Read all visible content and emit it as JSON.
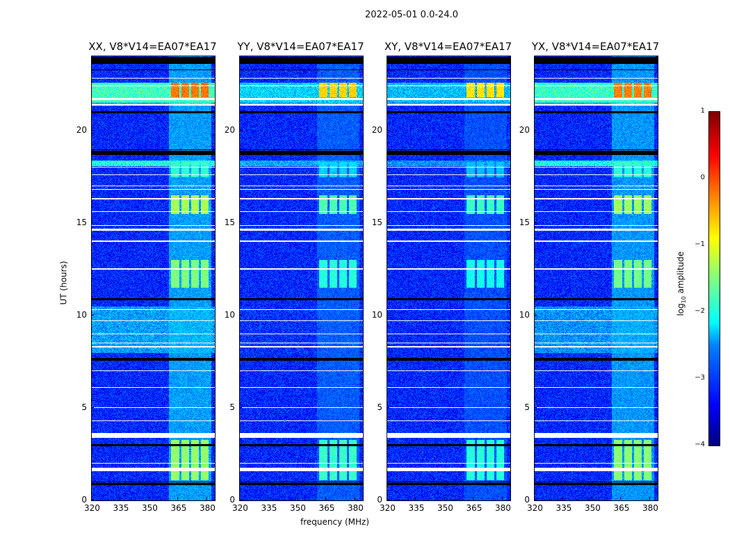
{
  "chart_data": {
    "type": "heatmap",
    "suptitle": "2022-05-01 0.0-24.0",
    "panels": [
      {
        "title": "XX, V8*V14=EA07*EA17",
        "scale": 1.0
      },
      {
        "title": "YY, V8*V14=EA07*EA17",
        "scale": 0.55
      },
      {
        "title": "XY, V8*V14=EA07*EA17",
        "scale": 0.45
      },
      {
        "title": "YX, V8*V14=EA07*EA17",
        "scale": 0.95
      }
    ],
    "xlabel": "frequency (MHz)",
    "ylabel": "UT (hours)",
    "xlim": [
      320,
      384
    ],
    "ylim": [
      0,
      24
    ],
    "xticks": [
      "320",
      "335",
      "350",
      "365",
      "380"
    ],
    "xtick_values": [
      320,
      335,
      350,
      365,
      380
    ],
    "yticks": [
      "0",
      "5",
      "10",
      "15",
      "20"
    ],
    "ytick_values": [
      0,
      5,
      10,
      15,
      20
    ],
    "colorbar": {
      "label_main": "log",
      "label_sub": "10",
      "label_rest": " amplitude",
      "ticks": [
        "1",
        "0",
        "−1",
        "−2",
        "−3",
        "−4"
      ],
      "tick_values": [
        1,
        0,
        -1,
        -2,
        -3,
        -4
      ],
      "range": [
        -4,
        1
      ],
      "colormap": "jet"
    },
    "rfi_channels_mhz": [
      [
        361,
        365.5
      ],
      [
        366.5,
        370.5
      ],
      [
        371.5,
        375.5
      ],
      [
        376.5,
        380.5
      ]
    ],
    "rfi_bursts": [
      {
        "ut": [
          1.1,
          3.3
        ],
        "level": -1.4
      },
      {
        "ut": [
          11.5,
          13.0
        ],
        "level": -1.5
      },
      {
        "ut": [
          15.5,
          16.5
        ],
        "level": -1.3
      },
      {
        "ut": [
          17.5,
          18.3
        ],
        "level": -1.9
      },
      {
        "ut": [
          21.8,
          22.6
        ],
        "level": -0.2
      }
    ],
    "broadband_bursts": [
      {
        "ut": [
          21.5,
          22.6
        ],
        "level": -1.8
      },
      {
        "ut": [
          18.1,
          18.4
        ],
        "level": -2.0
      },
      {
        "ut": [
          8.0,
          10.5
        ],
        "level": -2.6
      }
    ],
    "background_level": -3.2,
    "flagged_white_ut": [
      [
        1.6,
        1.8
      ],
      [
        2.0,
        2.05
      ],
      [
        3.4,
        3.65
      ],
      [
        4.3,
        4.35
      ],
      [
        5.0,
        5.05
      ],
      [
        6.1,
        6.15
      ],
      [
        7.0,
        7.05
      ],
      [
        8.3,
        8.35
      ],
      [
        8.5,
        8.55
      ],
      [
        9.0,
        9.05
      ],
      [
        9.7,
        9.75
      ],
      [
        10.3,
        10.35
      ],
      [
        12.5,
        12.55
      ],
      [
        14.0,
        14.05
      ],
      [
        14.6,
        14.7
      ],
      [
        14.85,
        14.9
      ],
      [
        15.6,
        15.65
      ],
      [
        16.3,
        16.35
      ],
      [
        16.8,
        16.85
      ],
      [
        17.0,
        17.05
      ],
      [
        17.6,
        17.65
      ],
      [
        18.0,
        18.05
      ],
      [
        21.35,
        21.45
      ],
      [
        21.65,
        21.75
      ],
      [
        22.4,
        22.45
      ],
      [
        22.8,
        22.85
      ]
    ],
    "flagged_black_ut": [
      [
        0.85,
        0.95
      ],
      [
        1.0,
        1.05
      ],
      [
        2.95,
        3.05
      ],
      [
        7.55,
        7.7
      ],
      [
        10.85,
        10.95
      ],
      [
        18.7,
        18.9
      ],
      [
        18.95,
        19.0
      ],
      [
        20.95,
        21.05
      ],
      [
        23.25,
        23.3
      ],
      [
        23.6,
        24.0
      ]
    ]
  }
}
